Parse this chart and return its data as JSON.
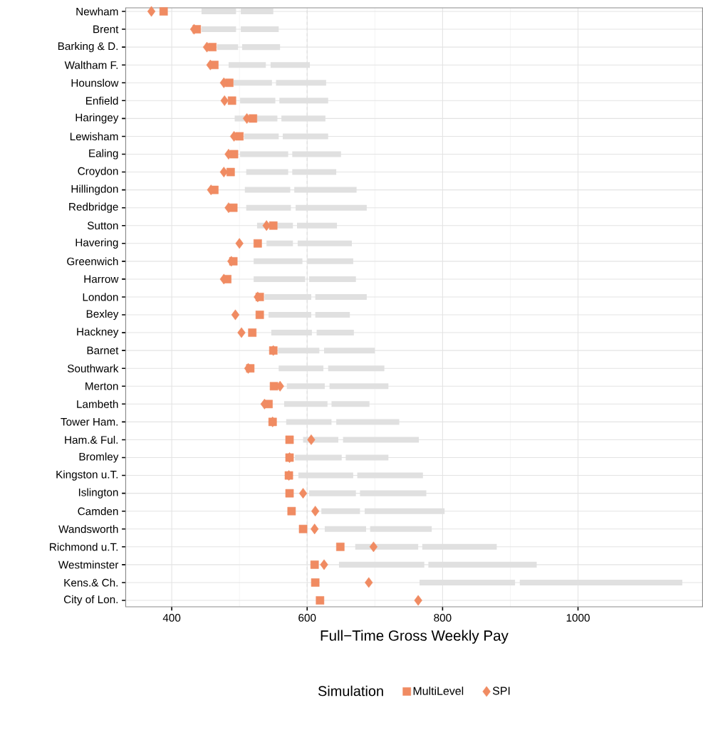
{
  "chart_data": {
    "type": "bar",
    "orientation": "horizontal",
    "categories": [
      "Newham",
      "Brent",
      "Barking & D.",
      "Waltham F.",
      "Hounslow",
      "Enfield",
      "Haringey",
      "Lewisham",
      "Ealing",
      "Croydon",
      "Hillingdon",
      "Redbridge",
      "Sutton",
      "Havering",
      "Greenwich",
      "Harrow",
      "London",
      "Bexley",
      "Hackney",
      "Barnet",
      "Southwark",
      "Merton",
      "Lambeth",
      "Tower Ham.",
      "Ham.& Ful.",
      "Bromley",
      "Kingston u.T.",
      "Islington",
      "Camden",
      "Wandsworth",
      "Richmond u.T.",
      "Westminster",
      "Kens.& Ch.",
      "City of Lon."
    ],
    "series": [
      {
        "type": "bar",
        "color": "#e0e0e0",
        "base": [
          444,
          444,
          467,
          484,
          491,
          501,
          493,
          507,
          501,
          510,
          508,
          510,
          526,
          540,
          521,
          521,
          537,
          543,
          547,
          557,
          558,
          570,
          566,
          569,
          594,
          582,
          587,
          603,
          621,
          626,
          671,
          647,
          766,
          null
        ],
        "values": [
          51,
          51,
          31,
          55,
          57,
          52,
          63,
          51,
          71,
          62,
          67,
          66,
          53,
          39,
          72,
          76,
          69,
          63,
          60,
          61,
          66,
          56,
          64,
          67,
          52,
          69,
          81,
          69,
          57,
          61,
          93,
          126,
          141,
          null
        ]
      },
      {
        "type": "bar",
        "color": "#e0e0e0",
        "base": [
          502,
          502,
          504,
          546,
          554,
          559,
          562,
          564,
          578,
          578,
          581,
          583,
          585,
          586,
          600,
          603,
          612,
          612,
          614,
          625,
          631,
          633,
          636,
          643,
          653,
          657,
          674,
          678,
          685,
          693,
          770,
          779,
          914,
          null
        ],
        "values": [
          48,
          56,
          56,
          58,
          74,
          72,
          65,
          67,
          72,
          65,
          92,
          105,
          59,
          80,
          68,
          69,
          76,
          51,
          55,
          75,
          83,
          87,
          56,
          93,
          112,
          63,
          97,
          98,
          118,
          91,
          110,
          160,
          240,
          null
        ]
      },
      {
        "type": "scatter",
        "name": "MultiLevel",
        "color": "#f08b62",
        "marker": "square",
        "values": [
          388,
          437,
          460,
          463,
          485,
          489,
          520,
          500,
          492,
          487,
          463,
          491,
          550,
          527,
          491,
          482,
          530,
          530,
          519,
          550,
          516,
          551,
          543,
          549,
          574,
          574,
          573,
          574,
          577,
          594,
          649,
          611,
          612,
          619
        ]
      },
      {
        "type": "scatter",
        "name": "SPI",
        "color": "#f08b62",
        "marker": "diamond",
        "values": [
          370,
          433,
          452,
          457,
          477,
          478,
          511,
          492,
          484,
          477,
          458,
          484,
          540,
          500,
          488,
          477,
          527,
          494,
          503,
          550,
          513,
          560,
          537,
          549,
          606,
          574,
          573,
          594,
          612,
          611,
          698,
          625,
          691,
          764
        ]
      }
    ],
    "xlabel": "Full−Time Gross Weekly Pay",
    "xlim": [
      332,
      1184
    ],
    "xticks": [
      400,
      600,
      800,
      1000
    ],
    "ref_lines": [
      {
        "axis": "x",
        "value": 600,
        "color": "#e0e0e0",
        "line_style": "dashed"
      }
    ],
    "grid": true,
    "legend": "bottom",
    "legend_title": "Simulation"
  }
}
